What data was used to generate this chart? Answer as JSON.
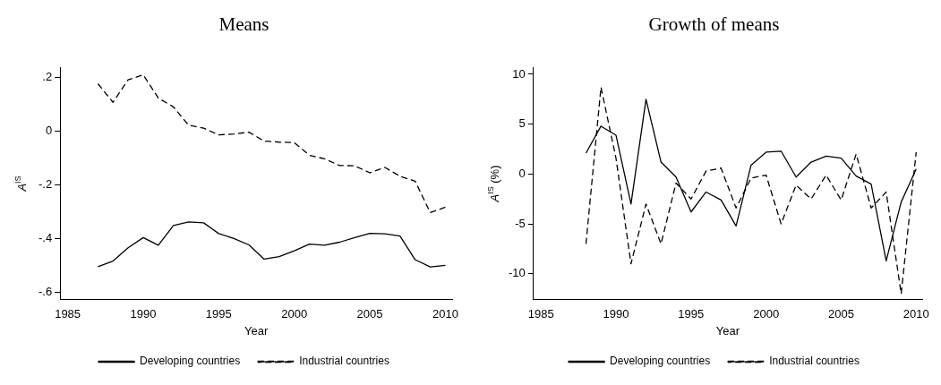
{
  "chart_data": [
    {
      "type": "line",
      "title": "Means",
      "xlabel": "Year",
      "ylabel": "A$^{IS}$",
      "x": [
        1987,
        1988,
        1989,
        1990,
        1991,
        1992,
        1993,
        1994,
        1995,
        1996,
        1997,
        1998,
        1999,
        2000,
        2001,
        2002,
        2003,
        2004,
        2005,
        2006,
        2007,
        2008,
        2009,
        2010
      ],
      "series": [
        {
          "name": "Developing countries",
          "color": "#000000",
          "line_style": "solid",
          "values": [
            -0.504,
            -0.483,
            -0.434,
            -0.396,
            -0.424,
            -0.351,
            -0.338,
            -0.341,
            -0.381,
            -0.399,
            -0.423,
            -0.476,
            -0.467,
            -0.445,
            -0.42,
            -0.424,
            -0.413,
            -0.396,
            -0.38,
            -0.382,
            -0.39,
            -0.478,
            -0.505,
            -0.499
          ]
        },
        {
          "name": "Industrial countries",
          "color": "#000000",
          "line_style": "dashed",
          "values": [
            0.176,
            0.107,
            0.191,
            0.209,
            0.123,
            0.09,
            0.022,
            0.011,
            -0.014,
            -0.011,
            -0.004,
            -0.037,
            -0.041,
            -0.043,
            -0.09,
            -0.103,
            -0.128,
            -0.129,
            -0.155,
            -0.135,
            -0.168,
            -0.186,
            -0.303,
            -0.283
          ]
        }
      ],
      "xlim": [
        1984.5,
        2010.45
      ],
      "xticks": [
        1985,
        1990,
        1995,
        2000,
        2005,
        2010
      ],
      "ylim": [
        -0.627,
        0.237
      ],
      "yticks": [
        {
          "value": -0.6,
          "label": "-.6"
        },
        {
          "value": -0.4,
          "label": "-.4"
        },
        {
          "value": -0.2,
          "label": "-.2"
        },
        {
          "value": 0,
          "label": "0"
        },
        {
          "value": 0.2,
          "label": ".2"
        }
      ],
      "grid": false,
      "legend": "bottom",
      "marker": "none"
    },
    {
      "type": "line",
      "title": "Growth of means",
      "xlabel": "Year",
      "ylabel": "A$^{IS}$ (%)",
      "x": [
        1988,
        1989,
        1990,
        1991,
        1992,
        1993,
        1994,
        1995,
        1996,
        1997,
        1998,
        1999,
        2000,
        2001,
        2002,
        2003,
        2004,
        2005,
        2006,
        2007,
        2008,
        2009,
        2010
      ],
      "series": [
        {
          "name": "Developing countries",
          "color": "#000000",
          "line_style": "solid",
          "values": [
            2.1,
            4.8,
            3.9,
            -3.0,
            7.5,
            1.2,
            -0.3,
            -3.8,
            -1.8,
            -2.6,
            -5.2,
            0.9,
            2.2,
            2.3,
            -0.3,
            1.2,
            1.8,
            1.6,
            -0.2,
            -1.0,
            -8.7,
            -2.8,
            0.5
          ]
        },
        {
          "name": "Industrial countries",
          "color": "#000000",
          "line_style": "dashed",
          "values": [
            -7.0,
            8.7,
            1.6,
            -9.0,
            -3.0,
            -7.0,
            -0.9,
            -2.5,
            0.3,
            0.6,
            -3.4,
            -0.4,
            -0.1,
            -5.0,
            -1.1,
            -2.5,
            -0.1,
            -2.6,
            2.0,
            -3.4,
            -1.8,
            -12.0,
            2.2
          ]
        }
      ],
      "xlim": [
        1984.5,
        2010.4
      ],
      "xticks": [
        1985,
        1990,
        1995,
        2000,
        2005,
        2010
      ],
      "ylim": [
        -12.6,
        10.7
      ],
      "yticks": [
        -10,
        -5,
        0,
        5,
        10
      ],
      "grid": false,
      "legend": "bottom",
      "marker": "none"
    }
  ]
}
